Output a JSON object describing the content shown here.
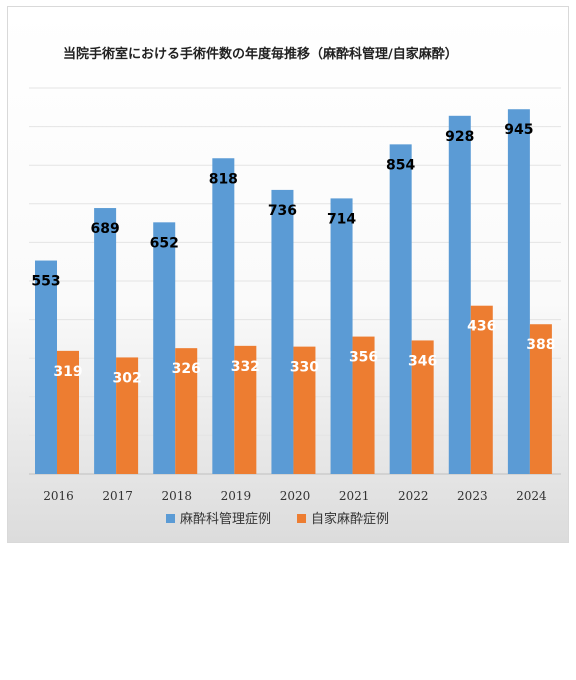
{
  "chart_data": {
    "type": "bar",
    "title": "当院手術室における手術件数の年度毎推移（麻酔科管理/自家麻酔）",
    "categories": [
      "2016",
      "2017",
      "2018",
      "2019",
      "2020",
      "2021",
      "2022",
      "2023",
      "2024"
    ],
    "series": [
      {
        "name": "麻酔科管理症例",
        "color": "#5b9bd5",
        "values": [
          553,
          689,
          652,
          818,
          736,
          714,
          854,
          928,
          945
        ]
      },
      {
        "name": "自家麻酔症例",
        "color": "#ed7d31",
        "values": [
          319,
          302,
          326,
          332,
          330,
          356,
          346,
          436,
          388
        ]
      }
    ],
    "ylim": [
      0,
      1000
    ],
    "grid": true,
    "legend": "bottom"
  }
}
